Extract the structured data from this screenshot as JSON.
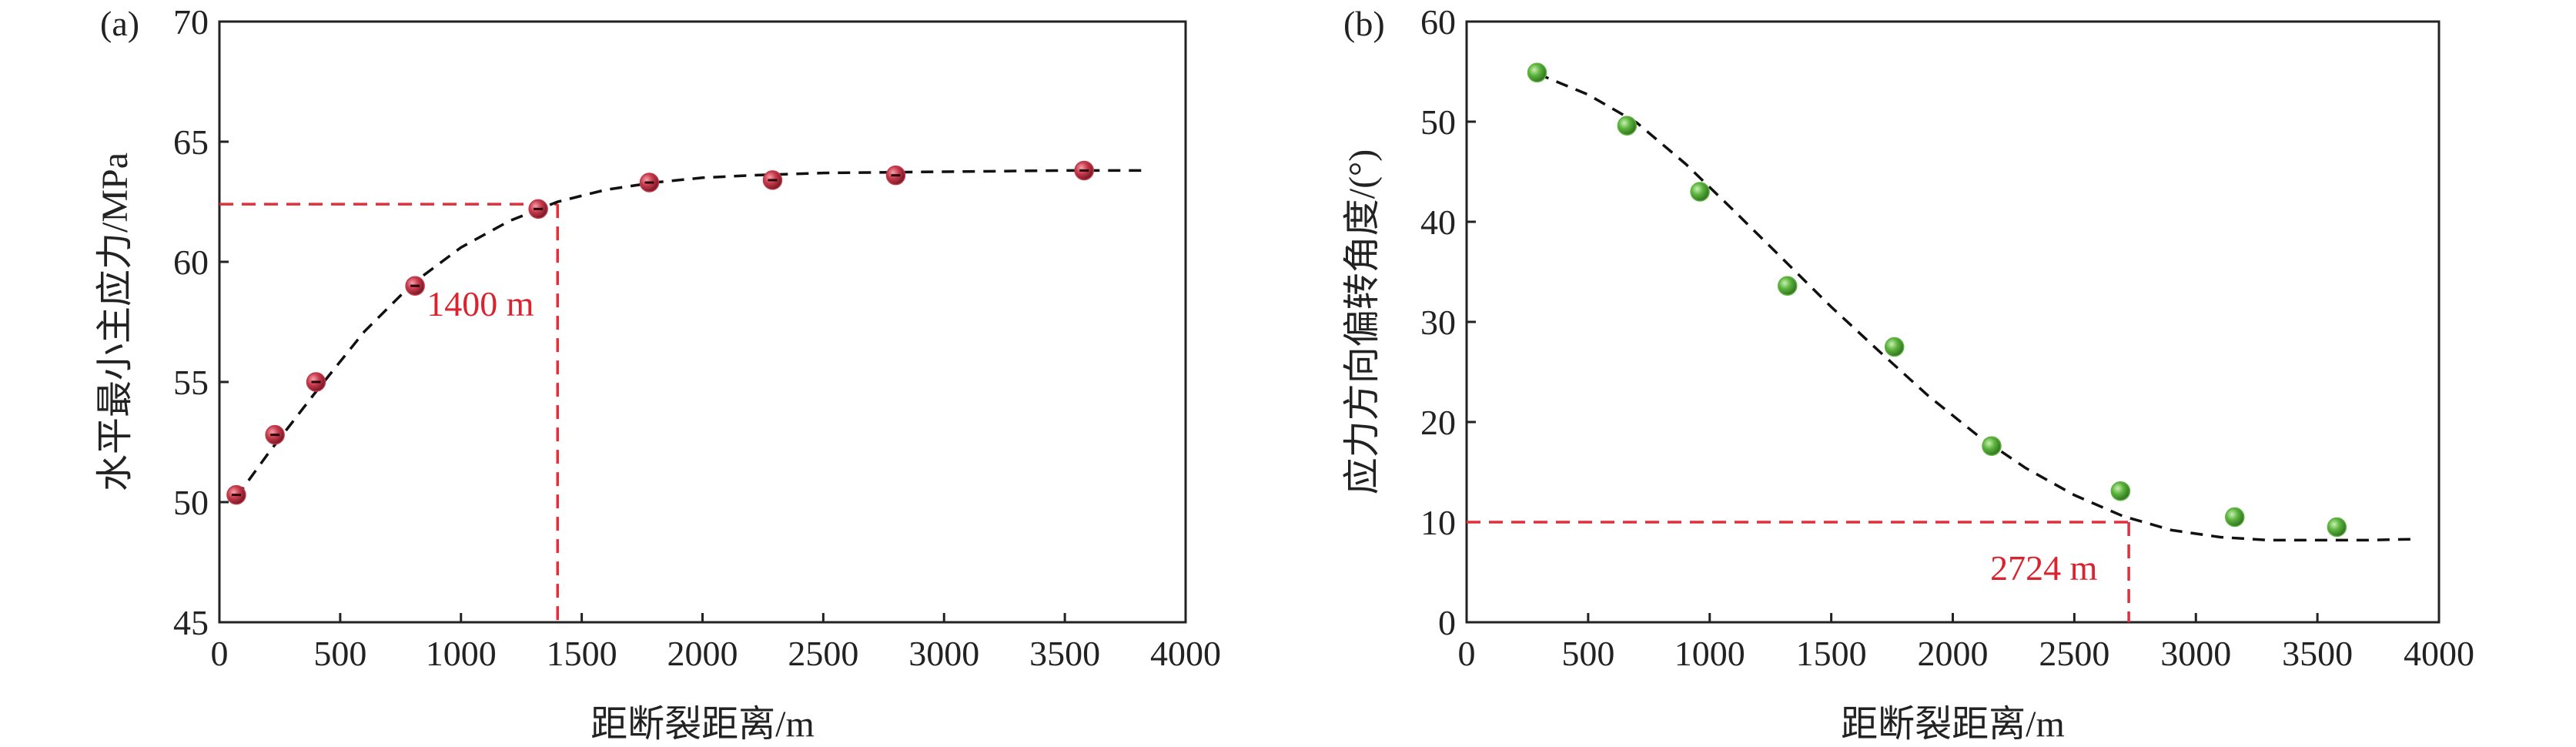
{
  "chart_data": [
    {
      "type": "scatter",
      "panel_label": "(a)",
      "xlabel": "距断裂距离/m",
      "ylabel": "水平最小主应力/MPa",
      "xlim": [
        0,
        4000
      ],
      "ylim": [
        45,
        70
      ],
      "x_ticks": [
        0,
        500,
        1000,
        1500,
        2000,
        2500,
        3000,
        3500,
        4000
      ],
      "y_ticks": [
        45,
        50,
        55,
        60,
        65,
        70
      ],
      "series": [
        {
          "marker_color": "#c23a4a",
          "x": [
            70,
            230,
            400,
            810,
            1320,
            1780,
            2290,
            2800,
            3580
          ],
          "y": [
            50.3,
            52.8,
            55.0,
            59.0,
            62.2,
            63.3,
            63.4,
            63.6,
            63.8
          ]
        }
      ],
      "fit_curve": {
        "x": [
          70,
          200,
          400,
          600,
          800,
          1000,
          1200,
          1400,
          1600,
          1800,
          2000,
          2200,
          2500,
          3000,
          3500,
          3850
        ],
        "y": [
          50.2,
          52.0,
          54.6,
          57.1,
          59.1,
          60.6,
          61.7,
          62.5,
          63.0,
          63.3,
          63.5,
          63.6,
          63.7,
          63.75,
          63.8,
          63.8
        ]
      },
      "reference_lines": {
        "x": 1400,
        "y": 62.4,
        "color": "#e0303b"
      },
      "annotation": "1400 m"
    },
    {
      "type": "scatter",
      "panel_label": "(b)",
      "xlabel": "距断裂距离/m",
      "ylabel": "应力方向偏转角度/(°)",
      "xlim": [
        0,
        4000
      ],
      "ylim": [
        0,
        60
      ],
      "x_ticks": [
        0,
        500,
        1000,
        1500,
        2000,
        2500,
        3000,
        3500,
        4000
      ],
      "y_ticks": [
        0,
        10,
        20,
        30,
        40,
        50,
        60
      ],
      "series": [
        {
          "marker_color": "#5cb33e",
          "x": [
            290,
            660,
            960,
            1320,
            1760,
            2160,
            2690,
            3160,
            3580
          ],
          "y": [
            54.9,
            49.6,
            43.0,
            33.6,
            27.5,
            17.6,
            13.1,
            10.5,
            9.5
          ]
        }
      ],
      "fit_curve": {
        "x": [
          290,
          500,
          700,
          900,
          1100,
          1300,
          1500,
          1700,
          1900,
          2100,
          2300,
          2500,
          2700,
          2900,
          3100,
          3300,
          3500,
          3700,
          3900
        ],
        "y": [
          54.8,
          52.7,
          49.9,
          45.8,
          41.1,
          36.3,
          31.5,
          27.0,
          22.6,
          18.7,
          15.4,
          12.7,
          10.6,
          9.2,
          8.5,
          8.2,
          8.2,
          8.2,
          8.3
        ]
      },
      "reference_lines": {
        "x": 2724,
        "y": 10,
        "color": "#e0303b"
      },
      "annotation": "2724 m"
    }
  ]
}
